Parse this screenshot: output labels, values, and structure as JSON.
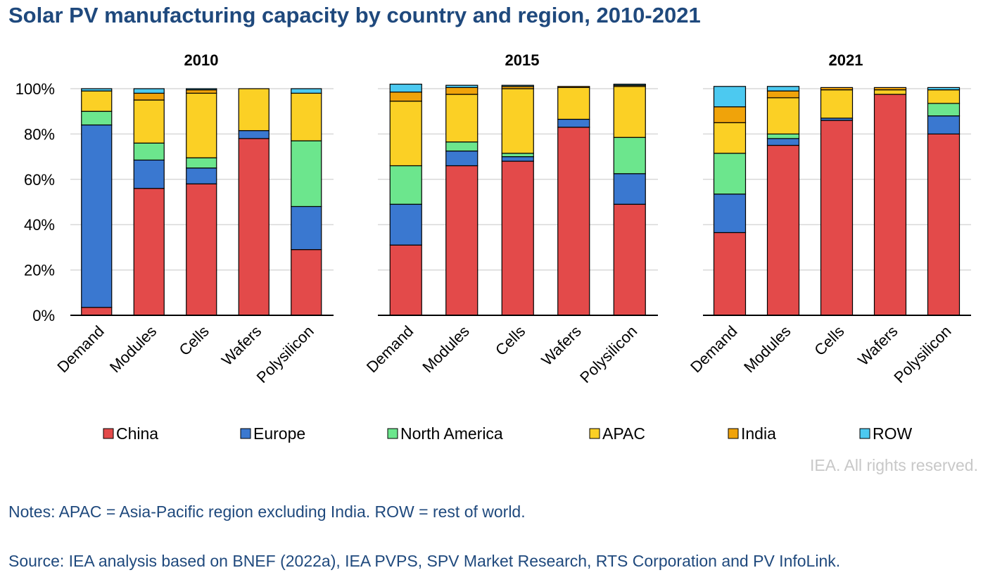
{
  "title": "Solar PV manufacturing capacity by country and region, 2010-2021",
  "credit": "IEA. All rights reserved.",
  "notes": "Notes: APAC = Asia-Pacific region excluding India. ROW = rest of world.",
  "source": "Source: IEA analysis based on BNEF (2022a), IEA PVPS, SPV Market Research, RTS Corporation and PV InfoLink.",
  "colors": {
    "China": "#e34a4a",
    "Europe": "#3a78d0",
    "North America": "#6ce68d",
    "APAC": "#fbd025",
    "India": "#f0a30a",
    "ROW": "#4cc9f0"
  },
  "chart_data": [
    {
      "type": "bar",
      "stacked": true,
      "title": "2010",
      "categories": [
        "Demand",
        "Modules",
        "Cells",
        "Wafers",
        "Polysilicon"
      ],
      "series": [
        {
          "name": "China",
          "values": [
            3.5,
            56,
            58,
            78,
            29
          ]
        },
        {
          "name": "Europe",
          "values": [
            80.5,
            12.5,
            7,
            3.5,
            19
          ]
        },
        {
          "name": "North America",
          "values": [
            6,
            7.5,
            4.5,
            0,
            29
          ]
        },
        {
          "name": "APAC",
          "values": [
            9,
            19,
            28.5,
            18.5,
            21
          ]
        },
        {
          "name": "India",
          "values": [
            0,
            3,
            1.5,
            0,
            0
          ]
        },
        {
          "name": "ROW",
          "values": [
            1,
            2,
            0.5,
            0,
            2
          ]
        }
      ],
      "ylim": [
        0,
        100
      ],
      "yticks": [
        "0%",
        "20%",
        "40%",
        "60%",
        "80%",
        "100%"
      ],
      "grid": true,
      "legend": "bottom"
    },
    {
      "type": "bar",
      "stacked": true,
      "title": "2015",
      "categories": [
        "Demand",
        "Modules",
        "Cells",
        "Wafers",
        "Polysilicon"
      ],
      "series": [
        {
          "name": "China",
          "values": [
            31,
            66,
            68,
            83,
            49
          ]
        },
        {
          "name": "Europe",
          "values": [
            18,
            6.5,
            2,
            3.5,
            13.5
          ]
        },
        {
          "name": "North America",
          "values": [
            17,
            4,
            1.5,
            0,
            16
          ]
        },
        {
          "name": "APAC",
          "values": [
            28.5,
            21,
            28.5,
            14,
            22.5
          ]
        },
        {
          "name": "India",
          "values": [
            4,
            3,
            1,
            0.5,
            0.5
          ]
        },
        {
          "name": "ROW",
          "values": [
            3.5,
            1,
            0.5,
            0,
            0.5
          ]
        }
      ],
      "ylim": [
        0,
        100
      ],
      "yticks": [
        "0%",
        "20%",
        "40%",
        "60%",
        "80%",
        "100%"
      ],
      "grid": true,
      "legend": "bottom"
    },
    {
      "type": "bar",
      "stacked": true,
      "title": "2021",
      "categories": [
        "Demand",
        "Modules",
        "Cells",
        "Wafers",
        "Polysilicon"
      ],
      "series": [
        {
          "name": "China",
          "values": [
            36.5,
            75,
            86,
            97.5,
            80
          ]
        },
        {
          "name": "Europe",
          "values": [
            17,
            3,
            1,
            0,
            8
          ]
        },
        {
          "name": "North America",
          "values": [
            18,
            2,
            0,
            0,
            5.5
          ]
        },
        {
          "name": "APAC",
          "values": [
            13.5,
            16,
            12.5,
            2,
            6
          ]
        },
        {
          "name": "India",
          "values": [
            7,
            3,
            1,
            1,
            0
          ]
        },
        {
          "name": "ROW",
          "values": [
            9,
            2,
            0,
            0,
            1
          ]
        }
      ],
      "ylim": [
        0,
        100
      ],
      "yticks": [
        "0%",
        "20%",
        "40%",
        "60%",
        "80%",
        "100%"
      ],
      "grid": true,
      "legend": "bottom"
    }
  ]
}
